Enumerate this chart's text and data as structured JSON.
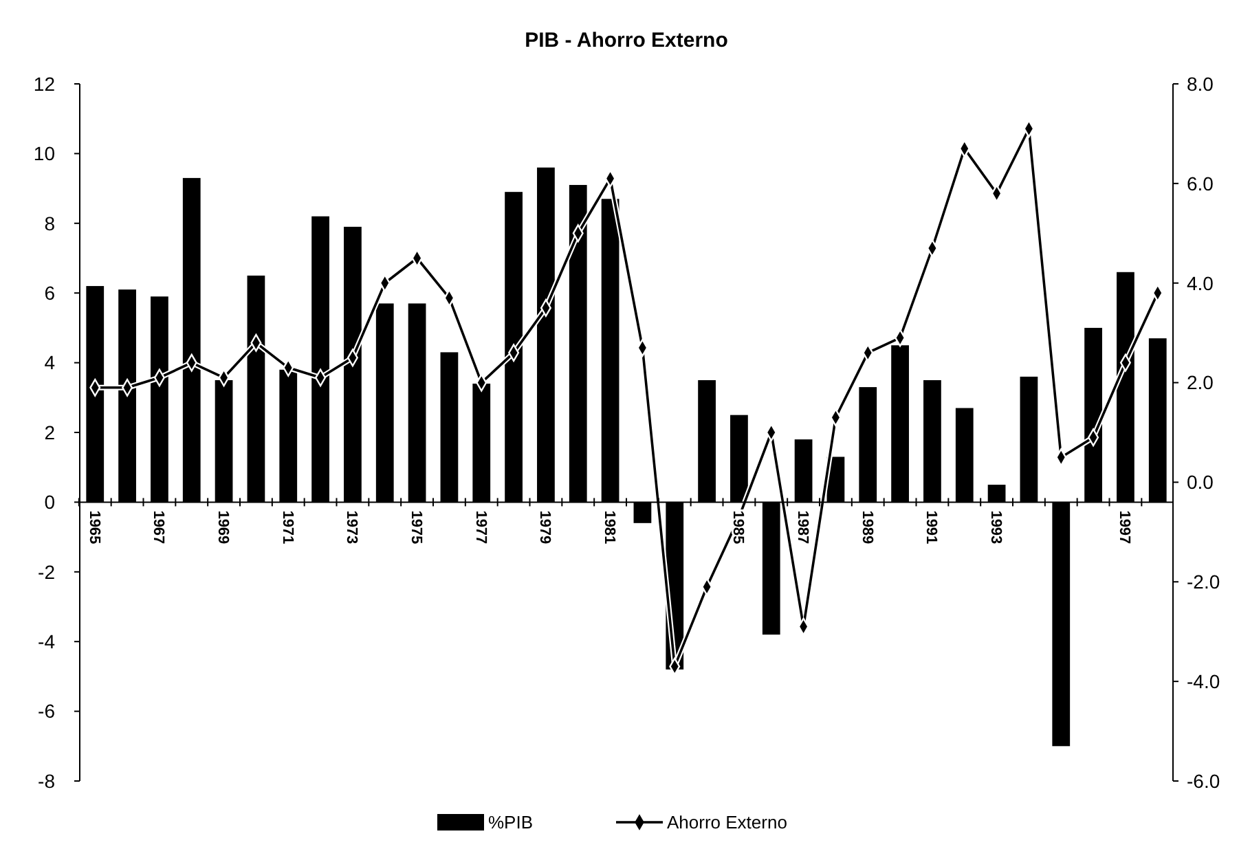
{
  "chart_data": {
    "type": "bar",
    "title": "PIB - Ahorro Externo",
    "categories": [
      "1965",
      null,
      "1967",
      null,
      "1969",
      null,
      "1971",
      null,
      "1973",
      null,
      "1975",
      null,
      "1977",
      null,
      "1979",
      null,
      "1981",
      null,
      null,
      null,
      "1985",
      null,
      "1987",
      null,
      "1989",
      null,
      "1991",
      null,
      "1993",
      null,
      null,
      null,
      "1997",
      null
    ],
    "series": [
      {
        "name": "%PIB",
        "color": "#000000",
        "values": [
          6.2,
          6.1,
          5.9,
          9.3,
          3.5,
          6.5,
          3.8,
          8.2,
          7.9,
          5.7,
          5.7,
          4.3,
          3.4,
          8.9,
          9.6,
          9.1,
          8.7,
          -0.6,
          -4.8,
          3.5,
          2.5,
          -3.8,
          1.8,
          1.3,
          3.3,
          4.5,
          3.5,
          2.7,
          0.5,
          3.6,
          -7,
          5,
          6.6,
          4.7
        ]
      },
      {
        "name": "Ahorro Externo",
        "type": "line",
        "axis": "y2",
        "color": "#000000",
        "values": [
          1.9,
          1.9,
          2.1,
          2.4,
          2.1,
          2.8,
          2.3,
          2.1,
          2.5,
          4,
          4.5,
          3.7,
          2,
          2.6,
          3.5,
          5,
          6.1,
          2.7,
          -3.7,
          -2.1,
          -0.7,
          1,
          -2.9,
          1.3,
          2.6,
          2.9,
          4.7,
          6.7,
          5.8,
          7.1,
          0.5,
          0.9,
          2.4,
          3.8
        ]
      }
    ],
    "ylim": [
      -8,
      12
    ],
    "yticks": [
      -8,
      -6,
      -4,
      -2,
      0,
      2,
      4,
      6,
      8,
      10,
      12
    ],
    "y2lim": [
      -6,
      8
    ],
    "y2ticks": [
      {
        "value": -6,
        "label": "-6.0"
      },
      {
        "value": -4,
        "label": "-4.0"
      },
      {
        "value": -2,
        "label": "-2.0"
      },
      {
        "value": 0,
        "label": "0.0"
      },
      {
        "value": 2,
        "label": "2.0"
      },
      {
        "value": 4,
        "label": "4.0"
      },
      {
        "value": 6,
        "label": "6.0"
      },
      {
        "value": 8,
        "label": "8.0"
      }
    ],
    "marker": "diamond",
    "legend": "bottom"
  }
}
